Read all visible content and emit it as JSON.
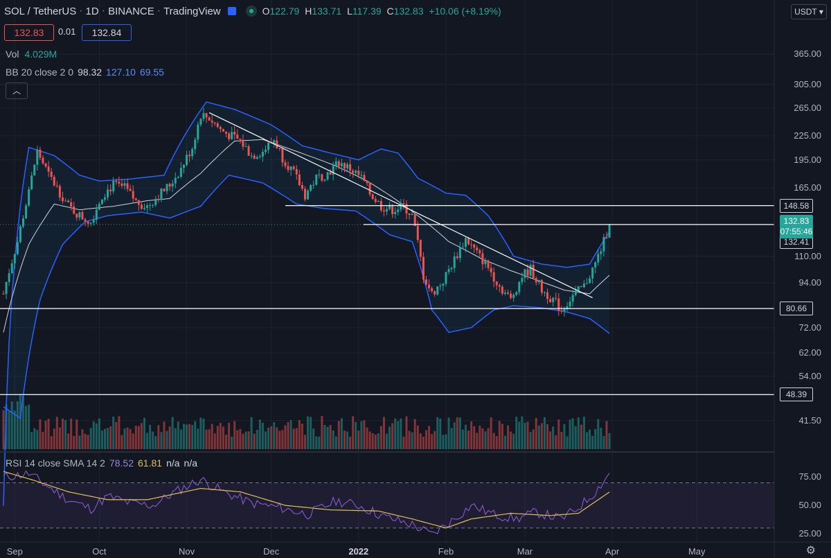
{
  "header": {
    "symbol": "SOL / TetherUS",
    "interval": "1D",
    "exchange": "BINANCE",
    "source": "TradingView",
    "ohlc": {
      "o_label": "O",
      "o": "122.79",
      "h_label": "H",
      "h": "133.71",
      "l_label": "L",
      "l": "117.39",
      "c_label": "C",
      "c": "132.83",
      "change": "+10.06 (+8.19%)"
    },
    "bid": "132.83",
    "spread": "0.01",
    "ask": "132.84",
    "currency": "USDT"
  },
  "legend": {
    "vol_label": "Vol",
    "vol_value": "4.029M",
    "bb_label": "BB 20 close 2 0",
    "bb_mid": "98.32",
    "bb_upper": "127.10",
    "bb_lower": "69.55",
    "rsi_label": "RSI 14 close SMA 14 2",
    "rsi_value": "78.52",
    "rsi_sma": "61.81",
    "rsi_na1": "n/a",
    "rsi_na2": "n/a"
  },
  "colors": {
    "up": "#26a69a",
    "down": "#ef5350",
    "bb": "#2962ff",
    "basis": "#d1d4dc",
    "rsi": "#7e57c2",
    "rsi_sma": "#e0c155",
    "bg": "#131722"
  },
  "chart_data": {
    "type": "candlestick",
    "title": "SOL / TetherUS 1D BINANCE",
    "y_scale": "log",
    "ylim": [
      38,
      410
    ],
    "y_ticks": [
      "365.00",
      "305.00",
      "265.00",
      "225.00",
      "195.00",
      "165.00",
      "110.00",
      "94.00",
      "72.00",
      "62.00",
      "54.00",
      "41.50"
    ],
    "y_tick_values": [
      365,
      305,
      265,
      225,
      195,
      165,
      110,
      94,
      72,
      62,
      54,
      41.5
    ],
    "x_tick_labels": [
      "Sep",
      "Oct",
      "Nov",
      "Dec",
      "2022",
      "Feb",
      "Mar",
      "Apr",
      "May"
    ],
    "x_tick_dates": [
      "2021-09-01",
      "2021-10-01",
      "2021-11-01",
      "2021-12-01",
      "2022-01-01",
      "2022-02-01",
      "2022-03-01",
      "2022-04-01",
      "2022-05-01"
    ],
    "x_range": [
      "2021-08-28",
      "2022-05-18"
    ],
    "series_close_anchors": [
      [
        "2021-08-28",
        88
      ],
      [
        "2021-09-02",
        120
      ],
      [
        "2021-09-06",
        160
      ],
      [
        "2021-09-09",
        205
      ],
      [
        "2021-09-13",
        178
      ],
      [
        "2021-09-16",
        165
      ],
      [
        "2021-09-20",
        148
      ],
      [
        "2021-09-24",
        140
      ],
      [
        "2021-09-28",
        135
      ],
      [
        "2021-10-02",
        158
      ],
      [
        "2021-10-06",
        168
      ],
      [
        "2021-10-10",
        165
      ],
      [
        "2021-10-14",
        152
      ],
      [
        "2021-10-18",
        148
      ],
      [
        "2021-10-22",
        158
      ],
      [
        "2021-10-26",
        168
      ],
      [
        "2021-10-30",
        185
      ],
      [
        "2021-11-03",
        210
      ],
      [
        "2021-11-06",
        255
      ],
      [
        "2021-11-09",
        250
      ],
      [
        "2021-11-13",
        233
      ],
      [
        "2021-11-17",
        224
      ],
      [
        "2021-11-20",
        218
      ],
      [
        "2021-11-24",
        200
      ],
      [
        "2021-11-28",
        205
      ],
      [
        "2021-12-02",
        220
      ],
      [
        "2021-12-05",
        198
      ],
      [
        "2021-12-09",
        180
      ],
      [
        "2021-12-13",
        158
      ],
      [
        "2021-12-17",
        175
      ],
      [
        "2021-12-21",
        180
      ],
      [
        "2021-12-25",
        192
      ],
      [
        "2021-12-29",
        185
      ],
      [
        "2022-01-02",
        175
      ],
      [
        "2022-01-05",
        160
      ],
      [
        "2022-01-09",
        148
      ],
      [
        "2022-01-13",
        145
      ],
      [
        "2022-01-17",
        148
      ],
      [
        "2022-01-20",
        140
      ],
      [
        "2022-01-24",
        98
      ],
      [
        "2022-01-27",
        88
      ],
      [
        "2022-01-31",
        95
      ],
      [
        "2022-02-04",
        108
      ],
      [
        "2022-02-08",
        122
      ],
      [
        "2022-02-12",
        112
      ],
      [
        "2022-02-16",
        103
      ],
      [
        "2022-02-20",
        92
      ],
      [
        "2022-02-24",
        85
      ],
      [
        "2022-02-28",
        98
      ],
      [
        "2022-03-03",
        102
      ],
      [
        "2022-03-07",
        90
      ],
      [
        "2022-03-11",
        85
      ],
      [
        "2022-03-14",
        80
      ],
      [
        "2022-03-18",
        87
      ],
      [
        "2022-03-22",
        92
      ],
      [
        "2022-03-26",
        105
      ],
      [
        "2022-03-29",
        120
      ],
      [
        "2022-03-31",
        132.83
      ]
    ],
    "bollinger": {
      "upper_anchors": [
        [
          "2021-08-28",
          25
        ],
        [
          "2021-09-06",
          210
        ],
        [
          "2021-09-15",
          200
        ],
        [
          "2021-09-24",
          178
        ],
        [
          "2021-10-01",
          172
        ],
        [
          "2021-10-12",
          174
        ],
        [
          "2021-10-24",
          178
        ],
        [
          "2021-11-01",
          230
        ],
        [
          "2021-11-08",
          275
        ],
        [
          "2021-11-18",
          263
        ],
        [
          "2021-12-01",
          240
        ],
        [
          "2021-12-12",
          212
        ],
        [
          "2021-12-22",
          203
        ],
        [
          "2022-01-01",
          195
        ],
        [
          "2022-01-09",
          208
        ],
        [
          "2022-01-15",
          203
        ],
        [
          "2022-01-22",
          175
        ],
        [
          "2022-02-01",
          160
        ],
        [
          "2022-02-08",
          158
        ],
        [
          "2022-02-16",
          140
        ],
        [
          "2022-02-25",
          110
        ],
        [
          "2022-03-07",
          105
        ],
        [
          "2022-03-16",
          103
        ],
        [
          "2022-03-24",
          105
        ],
        [
          "2022-03-31",
          127.1
        ]
      ],
      "basis_anchors": [
        [
          "2021-08-28",
          70
        ],
        [
          "2021-09-06",
          118
        ],
        [
          "2021-09-15",
          150
        ],
        [
          "2021-09-24",
          145
        ],
        [
          "2021-10-06",
          148
        ],
        [
          "2021-10-18",
          153
        ],
        [
          "2021-10-26",
          155
        ],
        [
          "2021-11-06",
          180
        ],
        [
          "2021-11-18",
          218
        ],
        [
          "2021-11-28",
          220
        ],
        [
          "2021-12-10",
          205
        ],
        [
          "2021-12-24",
          188
        ],
        [
          "2022-01-04",
          172
        ],
        [
          "2022-01-12",
          158
        ],
        [
          "2022-01-22",
          140
        ],
        [
          "2022-02-02",
          120
        ],
        [
          "2022-02-14",
          108
        ],
        [
          "2022-02-24",
          101
        ],
        [
          "2022-03-06",
          95
        ],
        [
          "2022-03-15",
          90
        ],
        [
          "2022-03-24",
          88
        ],
        [
          "2022-03-31",
          98.32
        ]
      ],
      "lower_anchors": [
        [
          "2021-08-28",
          45
        ],
        [
          "2021-09-03",
          42
        ],
        [
          "2021-09-10",
          85
        ],
        [
          "2021-09-18",
          118
        ],
        [
          "2021-09-26",
          135
        ],
        [
          "2021-10-04",
          140
        ],
        [
          "2021-10-16",
          143
        ],
        [
          "2021-10-26",
          138
        ],
        [
          "2021-11-06",
          148
        ],
        [
          "2021-11-16",
          178
        ],
        [
          "2021-11-28",
          170
        ],
        [
          "2021-12-10",
          150
        ],
        [
          "2021-12-20",
          146
        ],
        [
          "2021-12-31",
          144
        ],
        [
          "2022-01-12",
          125
        ],
        [
          "2022-01-20",
          120
        ],
        [
          "2022-01-27",
          80
        ],
        [
          "2022-02-02",
          70
        ],
        [
          "2022-02-10",
          72
        ],
        [
          "2022-02-18",
          80
        ],
        [
          "2022-02-25",
          82
        ],
        [
          "2022-03-07",
          81
        ],
        [
          "2022-03-16",
          79
        ],
        [
          "2022-03-24",
          76
        ],
        [
          "2022-03-31",
          69.55
        ]
      ]
    },
    "levels": [
      148.58,
      132.41,
      80.66,
      48.39
    ],
    "current_price": "132.83",
    "countdown": "07:55:46",
    "trendline": {
      "start": [
        "2021-11-09",
        258
      ],
      "end": [
        "2022-03-25",
        86
      ]
    },
    "rsi": {
      "ylim": [
        20,
        85
      ],
      "y_ticks": [
        "75.00",
        "50.00",
        "25.00"
      ],
      "y_tick_values": [
        75,
        50,
        25
      ],
      "band": [
        30,
        70
      ],
      "anchors": [
        [
          "2021-08-28",
          75
        ],
        [
          "2021-09-06",
          78
        ],
        [
          "2021-09-12",
          68
        ],
        [
          "2021-09-20",
          55
        ],
        [
          "2021-09-28",
          47
        ],
        [
          "2021-10-04",
          58
        ],
        [
          "2021-10-12",
          52
        ],
        [
          "2021-10-20",
          50
        ],
        [
          "2021-10-28",
          62
        ],
        [
          "2021-11-06",
          73
        ],
        [
          "2021-11-14",
          62
        ],
        [
          "2021-11-24",
          52
        ],
        [
          "2021-12-04",
          48
        ],
        [
          "2021-12-14",
          42
        ],
        [
          "2021-12-24",
          54
        ],
        [
          "2022-01-01",
          50
        ],
        [
          "2022-01-10",
          40
        ],
        [
          "2022-01-20",
          33
        ],
        [
          "2022-01-27",
          24
        ],
        [
          "2022-02-04",
          38
        ],
        [
          "2022-02-10",
          50
        ],
        [
          "2022-02-18",
          42
        ],
        [
          "2022-02-26",
          38
        ],
        [
          "2022-03-05",
          44
        ],
        [
          "2022-03-14",
          38
        ],
        [
          "2022-03-20",
          48
        ],
        [
          "2022-03-26",
          62
        ],
        [
          "2022-03-31",
          78.52
        ]
      ],
      "sma_anchors": [
        [
          "2021-08-28",
          80
        ],
        [
          "2021-09-08",
          72
        ],
        [
          "2021-09-20",
          62
        ],
        [
          "2021-10-04",
          55
        ],
        [
          "2021-10-18",
          55
        ],
        [
          "2021-11-06",
          65
        ],
        [
          "2021-11-20",
          62
        ],
        [
          "2021-12-06",
          50
        ],
        [
          "2021-12-22",
          46
        ],
        [
          "2022-01-08",
          45
        ],
        [
          "2022-01-20",
          38
        ],
        [
          "2022-02-01",
          30
        ],
        [
          "2022-02-10",
          38
        ],
        [
          "2022-02-24",
          43
        ],
        [
          "2022-03-10",
          41
        ],
        [
          "2022-03-20",
          43
        ],
        [
          "2022-03-31",
          61.81
        ]
      ]
    }
  },
  "axis_labels": {
    "y": [
      "365.00",
      "305.00",
      "265.00",
      "225.00",
      "195.00",
      "165.00",
      "110.00",
      "94.00",
      "72.00",
      "62.00",
      "54.00",
      "41.50"
    ]
  },
  "level_labels": [
    "148.58",
    "132.41",
    "80.66",
    "48.39"
  ]
}
